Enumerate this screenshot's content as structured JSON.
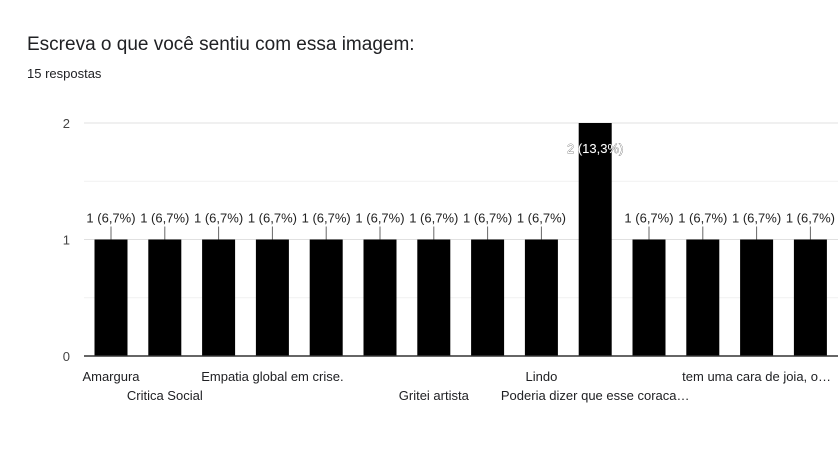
{
  "header": {
    "title": "Escreva o que você sentiu com essa imagem:",
    "responses": "15 respostas"
  },
  "chart_data": {
    "type": "bar",
    "categories": [
      "Amargura",
      "Critica Social",
      "",
      "Empatia global em crise.",
      "",
      "",
      "Gritei artista",
      "",
      "Lindo",
      "Poderia dizer que esse coraca…",
      "",
      "",
      "tem uma cara de joia, o…",
      ""
    ],
    "values": [
      1,
      1,
      1,
      1,
      1,
      1,
      1,
      1,
      1,
      2,
      1,
      1,
      1,
      1
    ],
    "data_labels": [
      "1 (6,7%)",
      "1 (6,7%)",
      "1 (6,7%)",
      "1 (6,7%)",
      "1 (6,7%)",
      "1 (6,7%)",
      "1 (6,7%)",
      "1 (6,7%)",
      "1 (6,7%)",
      "2 (13,3%)",
      "1 (6,7%)",
      "1 (6,7%)",
      "1 (6,7%)",
      "1 (6,7%)"
    ],
    "yticks": [
      "0",
      "1",
      "2"
    ],
    "ylim": [
      0,
      2
    ],
    "grid": true,
    "bar_color": "#000000"
  }
}
